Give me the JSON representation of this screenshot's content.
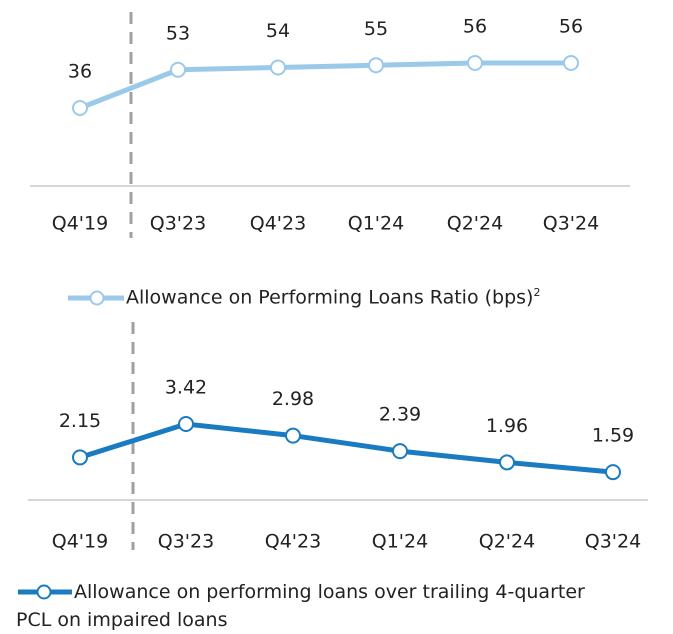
{
  "chart_data": [
    {
      "type": "line",
      "categories": [
        "Q4'19",
        "Q3'23",
        "Q4'23",
        "Q1'24",
        "Q2'24",
        "Q3'24"
      ],
      "series": [
        {
          "name": "Allowance on Performing Loans Ratio (bps)",
          "color": "#9bc9e9",
          "values": [
            36,
            53,
            54,
            55,
            56,
            56
          ]
        }
      ],
      "legend_footnote": "2"
    },
    {
      "type": "line",
      "categories": [
        "Q4'19",
        "Q3'23",
        "Q4'23",
        "Q1'24",
        "Q2'24",
        "Q3'24"
      ],
      "series": [
        {
          "name": "Allowance on performing loans over trailing 4-quarter PCL on impaired loans",
          "color": "#1a7bc0",
          "values": [
            2.15,
            3.42,
            2.98,
            2.39,
            1.96,
            1.59
          ]
        }
      ]
    }
  ]
}
